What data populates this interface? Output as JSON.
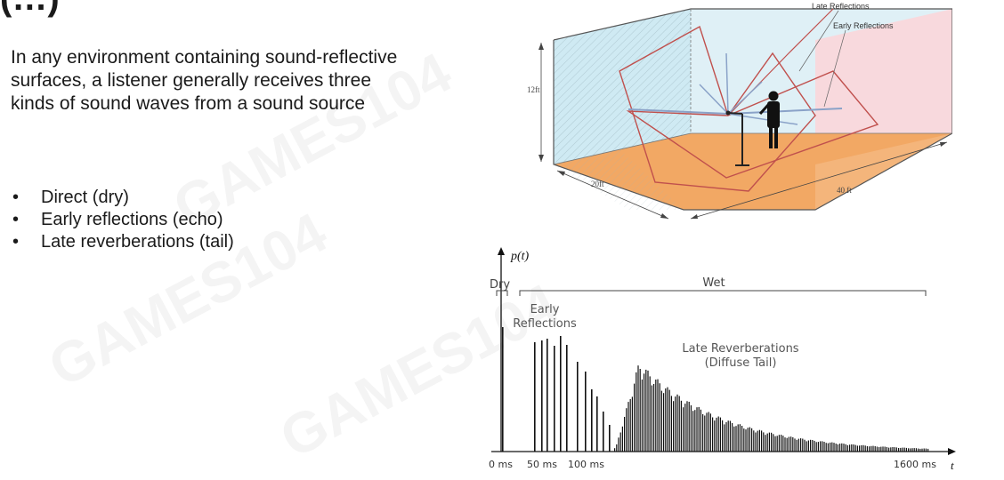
{
  "slide": {
    "title_fragment": "(…)",
    "intro": "In any environment containing sound-reflective surfaces, a listener generally receives three kinds of sound waves from a sound source",
    "bullets": [
      "Direct (dry)",
      "Early reflections (echo)",
      "Late reverberations (tail)"
    ],
    "bullet_glyph": "•"
  },
  "room_diagram": {
    "labels": {
      "late": "Late Reflections",
      "early": "Early Reflections",
      "height": "12ft",
      "depth": "20ft",
      "width": "40 ft"
    },
    "colors": {
      "left_wall": "#cfeaf3",
      "back_wall": "#dff0f6",
      "right_wall": "#f8d9dd",
      "ceiling": "#f7f3cc",
      "floor": "#f2a864",
      "late_rays": "#c0504d",
      "early_rays": "#8aa2c8"
    }
  },
  "impulse_plot": {
    "y_label": "p(t)",
    "x_label": "t",
    "dry_label": "Dry",
    "wet_label": "Wet",
    "early_label_1": "Early",
    "early_label_2": "Reflections",
    "late_label_1": "Late Reverberations",
    "late_label_2": "(Diffuse Tail)",
    "ticks": [
      "0 ms",
      "50 ms",
      "100 ms",
      "1600 ms"
    ]
  },
  "watermarks": [
    "GAMES104",
    "GAMES104",
    "GAMES104"
  ]
}
